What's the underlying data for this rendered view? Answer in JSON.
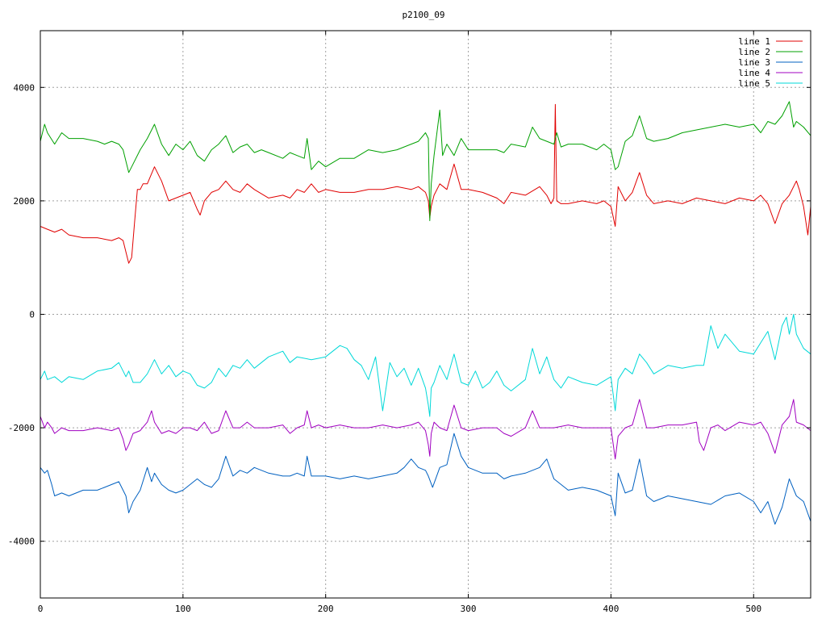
{
  "chart_data": {
    "type": "line",
    "title": "p2100_09",
    "xlim": [
      0,
      540
    ],
    "ylim": [
      -5000,
      5000
    ],
    "x_ticks": [
      0,
      100,
      200,
      300,
      400,
      500
    ],
    "y_ticks": [
      -4000,
      -2000,
      0,
      2000,
      4000
    ],
    "grid": true,
    "legend_position": "top-right",
    "series": [
      {
        "name": "line 1",
        "color": "#e00000",
        "x": [
          0,
          5,
          10,
          15,
          20,
          30,
          40,
          50,
          55,
          58,
          60,
          62,
          64,
          66,
          68,
          70,
          72,
          75,
          80,
          85,
          90,
          100,
          105,
          110,
          112,
          115,
          120,
          125,
          130,
          135,
          140,
          145,
          150,
          160,
          170,
          175,
          180,
          185,
          190,
          195,
          200,
          210,
          220,
          230,
          240,
          250,
          260,
          265,
          270,
          272,
          273,
          274,
          276,
          280,
          285,
          290,
          295,
          300,
          310,
          320,
          325,
          330,
          340,
          350,
          355,
          358,
          360,
          361,
          362,
          365,
          370,
          380,
          390,
          395,
          400,
          403,
          405,
          410,
          415,
          420,
          425,
          430,
          440,
          450,
          460,
          470,
          480,
          490,
          500,
          505,
          510,
          515,
          520,
          525,
          530,
          532,
          535,
          538,
          540
        ],
        "y": [
          1550,
          1500,
          1450,
          1500,
          1400,
          1350,
          1350,
          1300,
          1350,
          1300,
          1100,
          900,
          1000,
          1600,
          2200,
          2200,
          2300,
          2300,
          2600,
          2350,
          2000,
          2100,
          2150,
          1850,
          1750,
          2000,
          2150,
          2200,
          2350,
          2200,
          2150,
          2300,
          2200,
          2050,
          2100,
          2050,
          2200,
          2150,
          2300,
          2150,
          2200,
          2150,
          2150,
          2200,
          2200,
          2250,
          2200,
          2250,
          2150,
          2000,
          1700,
          1900,
          2100,
          2300,
          2200,
          2650,
          2200,
          2200,
          2150,
          2050,
          1950,
          2150,
          2100,
          2250,
          2100,
          1950,
          2050,
          3700,
          2000,
          1950,
          1950,
          2000,
          1950,
          2000,
          1900,
          1550,
          2250,
          2000,
          2150,
          2500,
          2100,
          1950,
          2000,
          1950,
          2050,
          2000,
          1950,
          2050,
          2000,
          2100,
          1950,
          1600,
          1950,
          2100,
          2350,
          2200,
          1900,
          1400,
          1900
        ]
      },
      {
        "name": "line 2",
        "color": "#00a000",
        "x": [
          0,
          3,
          5,
          10,
          15,
          20,
          30,
          40,
          45,
          50,
          55,
          58,
          60,
          62,
          65,
          70,
          75,
          80,
          85,
          90,
          95,
          100,
          105,
          110,
          115,
          120,
          125,
          130,
          135,
          140,
          145,
          150,
          155,
          160,
          170,
          175,
          180,
          185,
          187,
          190,
          195,
          200,
          210,
          220,
          230,
          240,
          250,
          260,
          265,
          270,
          272,
          273,
          274,
          276,
          280,
          282,
          285,
          290,
          295,
          300,
          310,
          320,
          325,
          330,
          340,
          345,
          350,
          360,
          362,
          365,
          370,
          380,
          390,
          395,
          400,
          403,
          405,
          410,
          415,
          420,
          425,
          430,
          440,
          450,
          460,
          470,
          480,
          490,
          500,
          505,
          510,
          515,
          520,
          525,
          528,
          530,
          535,
          540
        ],
        "y": [
          3050,
          3350,
          3200,
          3000,
          3200,
          3100,
          3100,
          3050,
          3000,
          3050,
          3000,
          2900,
          2700,
          2500,
          2650,
          2900,
          3100,
          3350,
          3000,
          2800,
          3000,
          2900,
          3050,
          2800,
          2700,
          2900,
          3000,
          3150,
          2850,
          2950,
          3000,
          2850,
          2900,
          2850,
          2750,
          2850,
          2800,
          2750,
          3100,
          2550,
          2700,
          2600,
          2750,
          2750,
          2900,
          2850,
          2900,
          3000,
          3050,
          3200,
          3100,
          1650,
          2300,
          2800,
          3600,
          2800,
          3000,
          2800,
          3100,
          2900,
          2900,
          2900,
          2850,
          3000,
          2950,
          3300,
          3100,
          3000,
          3200,
          2950,
          3000,
          3000,
          2900,
          3000,
          2900,
          2550,
          2600,
          3050,
          3150,
          3500,
          3100,
          3050,
          3100,
          3200,
          3250,
          3300,
          3350,
          3300,
          3350,
          3200,
          3400,
          3350,
          3500,
          3750,
          3300,
          3400,
          3300,
          3150
        ]
      },
      {
        "name": "line 3",
        "color": "#0060c0",
        "x": [
          0,
          3,
          5,
          8,
          10,
          15,
          20,
          30,
          40,
          50,
          55,
          60,
          62,
          65,
          70,
          75,
          78,
          80,
          85,
          90,
          95,
          100,
          105,
          110,
          115,
          120,
          125,
          130,
          135,
          140,
          145,
          150,
          160,
          170,
          175,
          180,
          185,
          187,
          190,
          195,
          200,
          210,
          220,
          230,
          240,
          250,
          255,
          260,
          265,
          270,
          272,
          275,
          280,
          285,
          290,
          295,
          300,
          310,
          320,
          325,
          330,
          340,
          350,
          355,
          360,
          370,
          380,
          390,
          400,
          403,
          405,
          410,
          415,
          420,
          425,
          430,
          440,
          450,
          460,
          470,
          480,
          490,
          500,
          505,
          510,
          515,
          520,
          525,
          530,
          535,
          540
        ],
        "y": [
          -2700,
          -2800,
          -2750,
          -3000,
          -3200,
          -3150,
          -3200,
          -3100,
          -3100,
          -3000,
          -2950,
          -3200,
          -3500,
          -3300,
          -3100,
          -2700,
          -2950,
          -2800,
          -3000,
          -3100,
          -3150,
          -3100,
          -3000,
          -2900,
          -3000,
          -3050,
          -2900,
          -2500,
          -2850,
          -2750,
          -2800,
          -2700,
          -2800,
          -2850,
          -2850,
          -2800,
          -2850,
          -2500,
          -2850,
          -2850,
          -2850,
          -2900,
          -2850,
          -2900,
          -2850,
          -2800,
          -2700,
          -2550,
          -2700,
          -2750,
          -2850,
          -3050,
          -2700,
          -2650,
          -2100,
          -2500,
          -2700,
          -2800,
          -2800,
          -2900,
          -2850,
          -2800,
          -2700,
          -2550,
          -2900,
          -3100,
          -3050,
          -3100,
          -3200,
          -3550,
          -2800,
          -3150,
          -3100,
          -2550,
          -3200,
          -3300,
          -3200,
          -3250,
          -3300,
          -3350,
          -3200,
          -3150,
          -3300,
          -3500,
          -3300,
          -3700,
          -3400,
          -2900,
          -3200,
          -3300,
          -3650
        ]
      },
      {
        "name": "line 4",
        "color": "#a000c0",
        "x": [
          0,
          3,
          5,
          8,
          10,
          15,
          20,
          30,
          40,
          50,
          55,
          58,
          60,
          62,
          65,
          70,
          75,
          78,
          80,
          85,
          90,
          95,
          100,
          105,
          110,
          115,
          120,
          125,
          130,
          135,
          140,
          145,
          150,
          160,
          170,
          175,
          180,
          185,
          187,
          190,
          195,
          200,
          210,
          220,
          230,
          240,
          250,
          260,
          265,
          270,
          272,
          273,
          274,
          276,
          280,
          285,
          290,
          295,
          300,
          310,
          320,
          325,
          330,
          340,
          345,
          350,
          360,
          370,
          380,
          390,
          400,
          403,
          405,
          410,
          415,
          420,
          425,
          430,
          440,
          450,
          460,
          462,
          465,
          470,
          475,
          480,
          490,
          500,
          505,
          510,
          515,
          520,
          525,
          528,
          530,
          535,
          540
        ],
        "y": [
          -1800,
          -2000,
          -1900,
          -2000,
          -2100,
          -2000,
          -2050,
          -2050,
          -2000,
          -2050,
          -2000,
          -2200,
          -2400,
          -2300,
          -2100,
          -2050,
          -1900,
          -1700,
          -1900,
          -2100,
          -2050,
          -2100,
          -2000,
          -2000,
          -2050,
          -1900,
          -2100,
          -2050,
          -1700,
          -2000,
          -2000,
          -1900,
          -2000,
          -2000,
          -1950,
          -2100,
          -2000,
          -1950,
          -1700,
          -2000,
          -1950,
          -2000,
          -1950,
          -2000,
          -2000,
          -1950,
          -2000,
          -1950,
          -1900,
          -2050,
          -2300,
          -2500,
          -2100,
          -1900,
          -2000,
          -2050,
          -1600,
          -2000,
          -2050,
          -2000,
          -2000,
          -2100,
          -2150,
          -2000,
          -1700,
          -2000,
          -2000,
          -1950,
          -2000,
          -2000,
          -2000,
          -2550,
          -2150,
          -2000,
          -1950,
          -1500,
          -2000,
          -2000,
          -1950,
          -1950,
          -1900,
          -2250,
          -2400,
          -2000,
          -1950,
          -2050,
          -1900,
          -1950,
          -1900,
          -2100,
          -2450,
          -1950,
          -1800,
          -1500,
          -1900,
          -1950,
          -2050
        ]
      },
      {
        "name": "line 5",
        "color": "#00d8d8",
        "x": [
          0,
          3,
          5,
          10,
          15,
          20,
          30,
          40,
          50,
          55,
          58,
          60,
          62,
          65,
          70,
          75,
          80,
          85,
          90,
          95,
          100,
          105,
          110,
          115,
          120,
          125,
          130,
          135,
          140,
          145,
          150,
          160,
          170,
          175,
          180,
          190,
          200,
          210,
          215,
          220,
          225,
          230,
          235,
          240,
          245,
          250,
          255,
          260,
          265,
          270,
          272,
          273,
          274,
          276,
          280,
          285,
          290,
          295,
          300,
          305,
          310,
          315,
          320,
          325,
          330,
          340,
          345,
          350,
          355,
          360,
          365,
          370,
          380,
          390,
          400,
          403,
          405,
          410,
          415,
          420,
          425,
          430,
          440,
          450,
          460,
          465,
          470,
          475,
          480,
          490,
          500,
          505,
          510,
          515,
          520,
          523,
          525,
          528,
          530,
          535,
          540
        ],
        "y": [
          -1150,
          -1000,
          -1150,
          -1100,
          -1200,
          -1100,
          -1150,
          -1000,
          -950,
          -850,
          -1000,
          -1100,
          -1000,
          -1200,
          -1200,
          -1050,
          -800,
          -1050,
          -900,
          -1100,
          -1000,
          -1050,
          -1250,
          -1300,
          -1200,
          -950,
          -1100,
          -900,
          -950,
          -800,
          -950,
          -750,
          -650,
          -850,
          -750,
          -800,
          -750,
          -550,
          -600,
          -800,
          -900,
          -1150,
          -750,
          -1700,
          -850,
          -1100,
          -950,
          -1250,
          -950,
          -1300,
          -1600,
          -1800,
          -1300,
          -1200,
          -900,
          -1150,
          -700,
          -1200,
          -1250,
          -1000,
          -1300,
          -1200,
          -1000,
          -1250,
          -1350,
          -1150,
          -600,
          -1050,
          -750,
          -1150,
          -1300,
          -1100,
          -1200,
          -1250,
          -1100,
          -1700,
          -1150,
          -950,
          -1050,
          -700,
          -850,
          -1050,
          -900,
          -950,
          -900,
          -900,
          -200,
          -600,
          -350,
          -650,
          -700,
          -500,
          -300,
          -800,
          -200,
          -50,
          -350,
          0,
          -350,
          -600,
          -700
        ]
      }
    ]
  }
}
